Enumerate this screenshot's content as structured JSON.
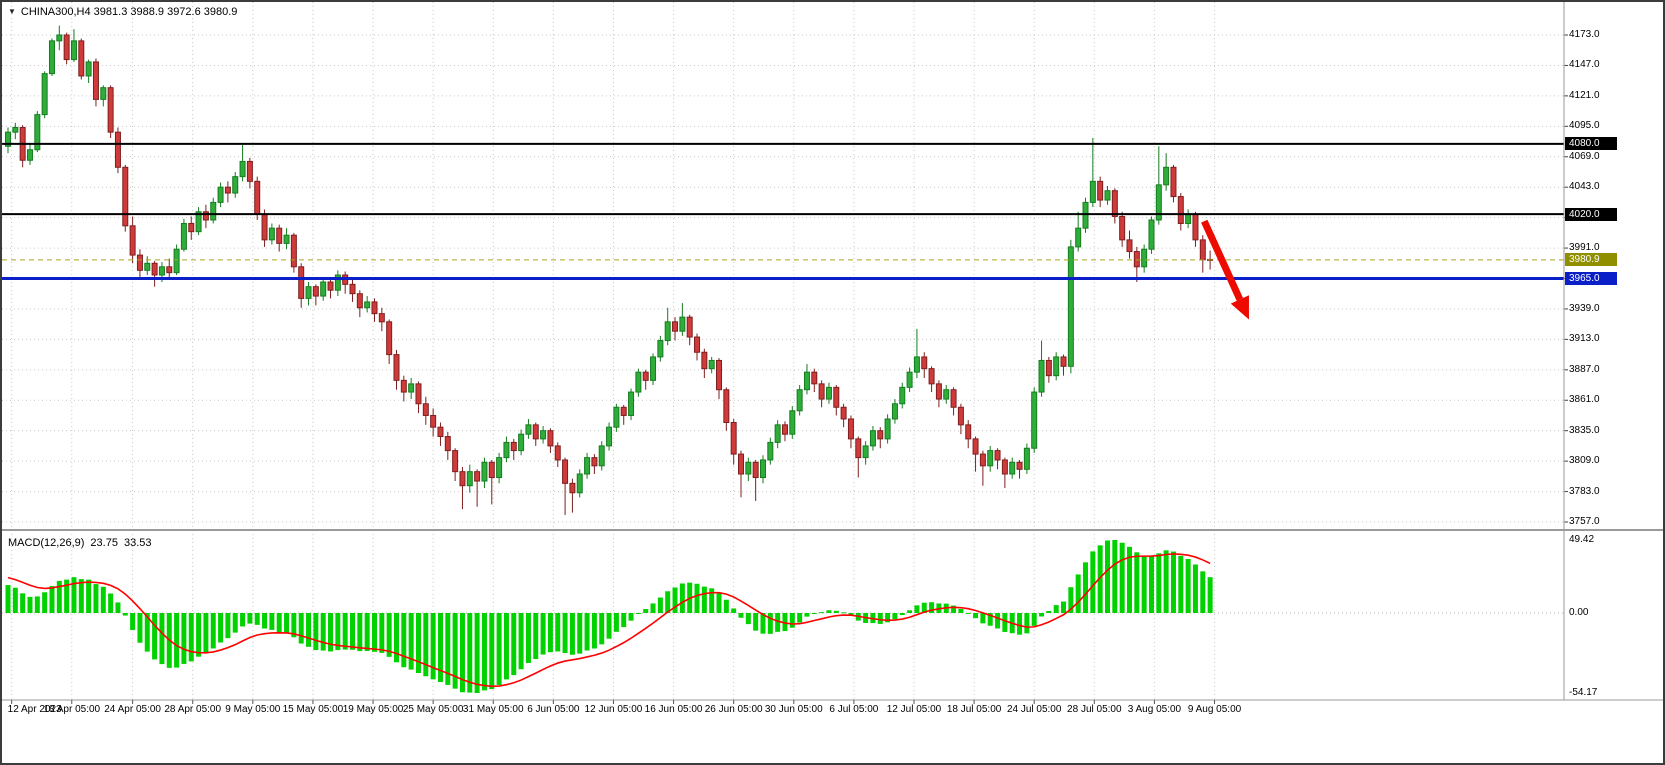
{
  "symbol_bar": {
    "dropdown_icon": "▼",
    "text": "CHINA300,H4 3981.3 3988.9 3972.6 3980.9"
  },
  "chart_data": {
    "type": "candlestick",
    "title": "CHINA300,H4",
    "symbol": "CHINA300",
    "timeframe": "H4",
    "current_ohlc": {
      "open": 3981.3,
      "high": 3988.9,
      "low": 3972.6,
      "close": 3980.9
    },
    "price_axis": {
      "min": 3757.0,
      "max": 4173.0,
      "step": 26.0,
      "decimals": 1,
      "ticks": [
        {
          "value": 4173,
          "label": "4173.0",
          "show": true
        },
        {
          "value": 4147,
          "label": "4147.0",
          "show": true
        },
        {
          "value": 4121,
          "label": "4121.0",
          "show": true
        },
        {
          "value": 4095,
          "label": "4095.0",
          "show": true
        },
        {
          "value": 4069,
          "label": "4069.0",
          "show": true
        },
        {
          "value": 4043,
          "label": "4043.0",
          "show": true
        },
        {
          "value": 4017,
          "label": "4017.0",
          "show": false
        },
        {
          "value": 3991,
          "label": "3991.0",
          "show": true
        },
        {
          "value": 3965,
          "label": "3965.0",
          "show": false
        },
        {
          "value": 3939,
          "label": "3939.0",
          "show": true
        },
        {
          "value": 3913,
          "label": "3913.0",
          "show": true
        },
        {
          "value": 3887,
          "label": "3887.0",
          "show": true
        },
        {
          "value": 3861,
          "label": "3861.0",
          "show": true
        },
        {
          "value": 3835,
          "label": "3835.0",
          "show": true
        },
        {
          "value": 3809,
          "label": "3809.0",
          "show": true
        },
        {
          "value": 3783,
          "label": "3783.0",
          "show": true
        },
        {
          "value": 3757,
          "label": "3757.0",
          "show": true
        }
      ]
    },
    "time_axis": {
      "labels": [
        {
          "text": "12 Apr 2023",
          "bar": 0.5
        },
        {
          "text": "18 Apr 05:00",
          "bar": 8.7
        },
        {
          "text": "24 Apr 05:00",
          "bar": 17
        },
        {
          "text": "28 Apr 05:00",
          "bar": 25.2
        },
        {
          "text": "9 May 05:00",
          "bar": 33.4
        },
        {
          "text": "15 May 05:00",
          "bar": 41.6
        },
        {
          "text": "19 May 05:00",
          "bar": 49.8
        },
        {
          "text": "25 May 05:00",
          "bar": 58
        },
        {
          "text": "31 May 05:00",
          "bar": 66.2
        },
        {
          "text": "6 Jun 05:00",
          "bar": 74.4
        },
        {
          "text": "12 Jun 05:00",
          "bar": 82.6
        },
        {
          "text": "16 Jun 05:00",
          "bar": 90.8
        },
        {
          "text": "26 Jun 05:00",
          "bar": 99
        },
        {
          "text": "30 Jun 05:00",
          "bar": 107.2
        },
        {
          "text": "6 Jul 05:00",
          "bar": 115.4
        },
        {
          "text": "12 Jul 05:00",
          "bar": 123.6
        },
        {
          "text": "18 Jul 05:00",
          "bar": 131.8
        },
        {
          "text": "24 Jul 05:00",
          "bar": 140
        },
        {
          "text": "28 Jul 05:00",
          "bar": 148.2
        },
        {
          "text": "3 Aug 05:00",
          "bar": 156.4
        },
        {
          "text": "9 Aug 05:00",
          "bar": 164.6
        }
      ]
    },
    "candles": [
      [
        4078,
        4094,
        4072,
        4090
      ],
      [
        4090,
        4098,
        4084,
        4094
      ],
      [
        4094,
        4096,
        4060,
        4066
      ],
      [
        4066,
        4080,
        4062,
        4075
      ],
      [
        4075,
        4108,
        4073,
        4105
      ],
      [
        4105,
        4142,
        4102,
        4140
      ],
      [
        4140,
        4170,
        4138,
        4168
      ],
      [
        4168,
        4181,
        4160,
        4173
      ],
      [
        4173,
        4175,
        4148,
        4152
      ],
      [
        4152,
        4178,
        4150,
        4168
      ],
      [
        4168,
        4170,
        4135,
        4138
      ],
      [
        4138,
        4152,
        4132,
        4150
      ],
      [
        4150,
        4153,
        4112,
        4118
      ],
      [
        4118,
        4130,
        4112,
        4128
      ],
      [
        4128,
        4130,
        4085,
        4090
      ],
      [
        4090,
        4094,
        4055,
        4060
      ],
      [
        4060,
        4062,
        4005,
        4010
      ],
      [
        4010,
        4018,
        3978,
        3985
      ],
      [
        3985,
        3990,
        3965,
        3972
      ],
      [
        3972,
        3984,
        3968,
        3978
      ],
      [
        3978,
        3980,
        3958,
        3968
      ],
      [
        3968,
        3979,
        3962,
        3975
      ],
      [
        3975,
        3982,
        3964,
        3970
      ],
      [
        3970,
        3994,
        3968,
        3990
      ],
      [
        3990,
        4016,
        3988,
        4012
      ],
      [
        4012,
        4018,
        3998,
        4005
      ],
      [
        4005,
        4026,
        4002,
        4022
      ],
      [
        4022,
        4028,
        4008,
        4015
      ],
      [
        4015,
        4034,
        4012,
        4030
      ],
      [
        4030,
        4047,
        4026,
        4043
      ],
      [
        4043,
        4048,
        4030,
        4038
      ],
      [
        4038,
        4056,
        4034,
        4052
      ],
      [
        4052,
        4079,
        4048,
        4065
      ],
      [
        4065,
        4068,
        4042,
        4048
      ],
      [
        4048,
        4052,
        4015,
        4020
      ],
      [
        4020,
        4024,
        3992,
        3998
      ],
      [
        3998,
        4012,
        3994,
        4008
      ],
      [
        4008,
        4011,
        3988,
        3995
      ],
      [
        3995,
        4008,
        3990,
        4002
      ],
      [
        4002,
        4004,
        3970,
        3975
      ],
      [
        3975,
        3978,
        3940,
        3948
      ],
      [
        3948,
        3962,
        3942,
        3958
      ],
      [
        3958,
        3960,
        3942,
        3950
      ],
      [
        3950,
        3966,
        3946,
        3962
      ],
      [
        3962,
        3964,
        3948,
        3955
      ],
      [
        3955,
        3972,
        3950,
        3968
      ],
      [
        3968,
        3971,
        3952,
        3960
      ],
      [
        3960,
        3965,
        3945,
        3952
      ],
      [
        3952,
        3955,
        3932,
        3940
      ],
      [
        3940,
        3950,
        3936,
        3945
      ],
      [
        3945,
        3948,
        3928,
        3935
      ],
      [
        3935,
        3940,
        3920,
        3928
      ],
      [
        3928,
        3930,
        3892,
        3900
      ],
      [
        3900,
        3904,
        3870,
        3878
      ],
      [
        3878,
        3882,
        3860,
        3868
      ],
      [
        3868,
        3880,
        3862,
        3875
      ],
      [
        3875,
        3877,
        3850,
        3858
      ],
      [
        3858,
        3864,
        3840,
        3848
      ],
      [
        3848,
        3854,
        3830,
        3838
      ],
      [
        3838,
        3842,
        3822,
        3830
      ],
      [
        3830,
        3834,
        3810,
        3818
      ],
      [
        3818,
        3820,
        3792,
        3800
      ],
      [
        3800,
        3804,
        3768,
        3788
      ],
      [
        3788,
        3806,
        3782,
        3800
      ],
      [
        3800,
        3802,
        3770,
        3792
      ],
      [
        3792,
        3812,
        3786,
        3808
      ],
      [
        3808,
        3810,
        3772,
        3795
      ],
      [
        3795,
        3816,
        3790,
        3812
      ],
      [
        3812,
        3830,
        3808,
        3825
      ],
      [
        3825,
        3828,
        3810,
        3818
      ],
      [
        3818,
        3836,
        3814,
        3832
      ],
      [
        3832,
        3845,
        3828,
        3840
      ],
      [
        3840,
        3842,
        3822,
        3828
      ],
      [
        3828,
        3839,
        3824,
        3835
      ],
      [
        3835,
        3837,
        3816,
        3822
      ],
      [
        3822,
        3825,
        3804,
        3810
      ],
      [
        3810,
        3812,
        3763,
        3790
      ],
      [
        3790,
        3794,
        3765,
        3782
      ],
      [
        3782,
        3802,
        3778,
        3798
      ],
      [
        3798,
        3816,
        3794,
        3812
      ],
      [
        3812,
        3815,
        3798,
        3805
      ],
      [
        3805,
        3826,
        3801,
        3822
      ],
      [
        3822,
        3842,
        3818,
        3838
      ],
      [
        3838,
        3858,
        3834,
        3855
      ],
      [
        3855,
        3857,
        3840,
        3848
      ],
      [
        3848,
        3871,
        3844,
        3868
      ],
      [
        3868,
        3888,
        3864,
        3885
      ],
      [
        3885,
        3887,
        3870,
        3878
      ],
      [
        3878,
        3901,
        3874,
        3898
      ],
      [
        3898,
        3916,
        3894,
        3912
      ],
      [
        3912,
        3940,
        3908,
        3928
      ],
      [
        3928,
        3932,
        3912,
        3920
      ],
      [
        3920,
        3944,
        3916,
        3932
      ],
      [
        3932,
        3934,
        3908,
        3915
      ],
      [
        3915,
        3918,
        3895,
        3902
      ],
      [
        3902,
        3905,
        3880,
        3888
      ],
      [
        3888,
        3898,
        3884,
        3895
      ],
      [
        3895,
        3897,
        3862,
        3870
      ],
      [
        3870,
        3872,
        3835,
        3842
      ],
      [
        3842,
        3845,
        3806,
        3815
      ],
      [
        3815,
        3818,
        3778,
        3798
      ],
      [
        3798,
        3812,
        3792,
        3808
      ],
      [
        3808,
        3810,
        3775,
        3795
      ],
      [
        3795,
        3814,
        3790,
        3810
      ],
      [
        3810,
        3829,
        3806,
        3825
      ],
      [
        3825,
        3844,
        3820,
        3840
      ],
      [
        3840,
        3843,
        3826,
        3832
      ],
      [
        3832,
        3856,
        3828,
        3852
      ],
      [
        3852,
        3874,
        3848,
        3870
      ],
      [
        3870,
        3892,
        3866,
        3885
      ],
      [
        3885,
        3888,
        3868,
        3875
      ],
      [
        3875,
        3878,
        3855,
        3862
      ],
      [
        3862,
        3876,
        3858,
        3872
      ],
      [
        3872,
        3874,
        3848,
        3855
      ],
      [
        3855,
        3858,
        3838,
        3845
      ],
      [
        3845,
        3848,
        3820,
        3828
      ],
      [
        3828,
        3830,
        3795,
        3812
      ],
      [
        3812,
        3826,
        3806,
        3822
      ],
      [
        3822,
        3839,
        3818,
        3835
      ],
      [
        3835,
        3838,
        3820,
        3828
      ],
      [
        3828,
        3849,
        3824,
        3845
      ],
      [
        3845,
        3862,
        3841,
        3858
      ],
      [
        3858,
        3876,
        3854,
        3872
      ],
      [
        3872,
        3889,
        3868,
        3885
      ],
      [
        3885,
        3922,
        3880,
        3898
      ],
      [
        3898,
        3902,
        3880,
        3888
      ],
      [
        3888,
        3890,
        3868,
        3875
      ],
      [
        3875,
        3878,
        3855,
        3862
      ],
      [
        3862,
        3874,
        3858,
        3870
      ],
      [
        3870,
        3872,
        3848,
        3855
      ],
      [
        3855,
        3858,
        3832,
        3840
      ],
      [
        3840,
        3844,
        3820,
        3828
      ],
      [
        3828,
        3830,
        3800,
        3815
      ],
      [
        3815,
        3818,
        3788,
        3805
      ],
      [
        3805,
        3822,
        3800,
        3818
      ],
      [
        3818,
        3820,
        3802,
        3810
      ],
      [
        3810,
        3812,
        3786,
        3798
      ],
      [
        3798,
        3812,
        3794,
        3808
      ],
      [
        3808,
        3810,
        3794,
        3802
      ],
      [
        3802,
        3824,
        3798,
        3820
      ],
      [
        3820,
        3872,
        3816,
        3868
      ],
      [
        3868,
        3912,
        3864,
        3895
      ],
      [
        3895,
        3898,
        3876,
        3882
      ],
      [
        3882,
        3902,
        3878,
        3898
      ],
      [
        3898,
        3900,
        3882,
        3890
      ],
      [
        3890,
        3998,
        3884,
        3992
      ],
      [
        3992,
        4022,
        3988,
        4008
      ],
      [
        4008,
        4034,
        4004,
        4030
      ],
      [
        4030,
        4085,
        4026,
        4048
      ],
      [
        4048,
        4052,
        4026,
        4032
      ],
      [
        4032,
        4044,
        4028,
        4040
      ],
      [
        4040,
        4042,
        4012,
        4018
      ],
      [
        4018,
        4022,
        3992,
        3998
      ],
      [
        3998,
        4006,
        3982,
        3988
      ],
      [
        3988,
        3992,
        3962,
        3975
      ],
      [
        3975,
        3994,
        3970,
        3990
      ],
      [
        3990,
        4018,
        3986,
        4015
      ],
      [
        4015,
        4078,
        4011,
        4045
      ],
      [
        4045,
        4072,
        4040,
        4060
      ],
      [
        4060,
        4062,
        4030,
        4035
      ],
      [
        4035,
        4038,
        4006,
        4012
      ],
      [
        4012,
        4024,
        4008,
        4020
      ],
      [
        4020,
        4022,
        3992,
        3998
      ],
      [
        3998,
        4002,
        3970,
        3981
      ],
      [
        3981.3,
        3988.9,
        3972.6,
        3980.9
      ]
    ],
    "hlines": [
      {
        "price": 4080.0,
        "label": "4080.0",
        "color": "#000000",
        "width": 2
      },
      {
        "price": 4020.0,
        "label": "4020.0",
        "color": "#000000",
        "width": 2
      },
      {
        "price": 3965.0,
        "label": "3965.0",
        "color": "#0b1fc9",
        "width": 3
      }
    ],
    "current_price": {
      "price": 3980.9,
      "label": "3980.9",
      "box_color": "#8f8f00",
      "line_color": "#a8a81e",
      "line_style": "dashed"
    },
    "annotation_arrow": {
      "color": "#ed0b00",
      "width": 7,
      "from_bar": 163.2,
      "from_price": 4014,
      "to_bar": 169.3,
      "to_price": 3930
    },
    "macd_panel": {
      "type": "macd",
      "label_name": "MACD(12,26,9)",
      "value_main": "23.75",
      "value_signal": "33.53",
      "fast": 12,
      "slow": 26,
      "signal": 9,
      "axis_max": "49.42",
      "axis_zero": "0.00",
      "axis_min": "-54.17",
      "axis_max_value": 49.42,
      "axis_min_value": -54.17,
      "histogram_color": "#00d200",
      "signal_color": "#ff0000"
    }
  },
  "colors": {
    "background": "#ffffff",
    "grid": "#c9c9c9",
    "up_fill": "#2fad3a",
    "up_stroke": "#157d20",
    "down_fill": "#cf3a3a",
    "down_stroke": "#7e1f1f",
    "separator": "#9a9a9a",
    "axis_text": "#000000"
  }
}
